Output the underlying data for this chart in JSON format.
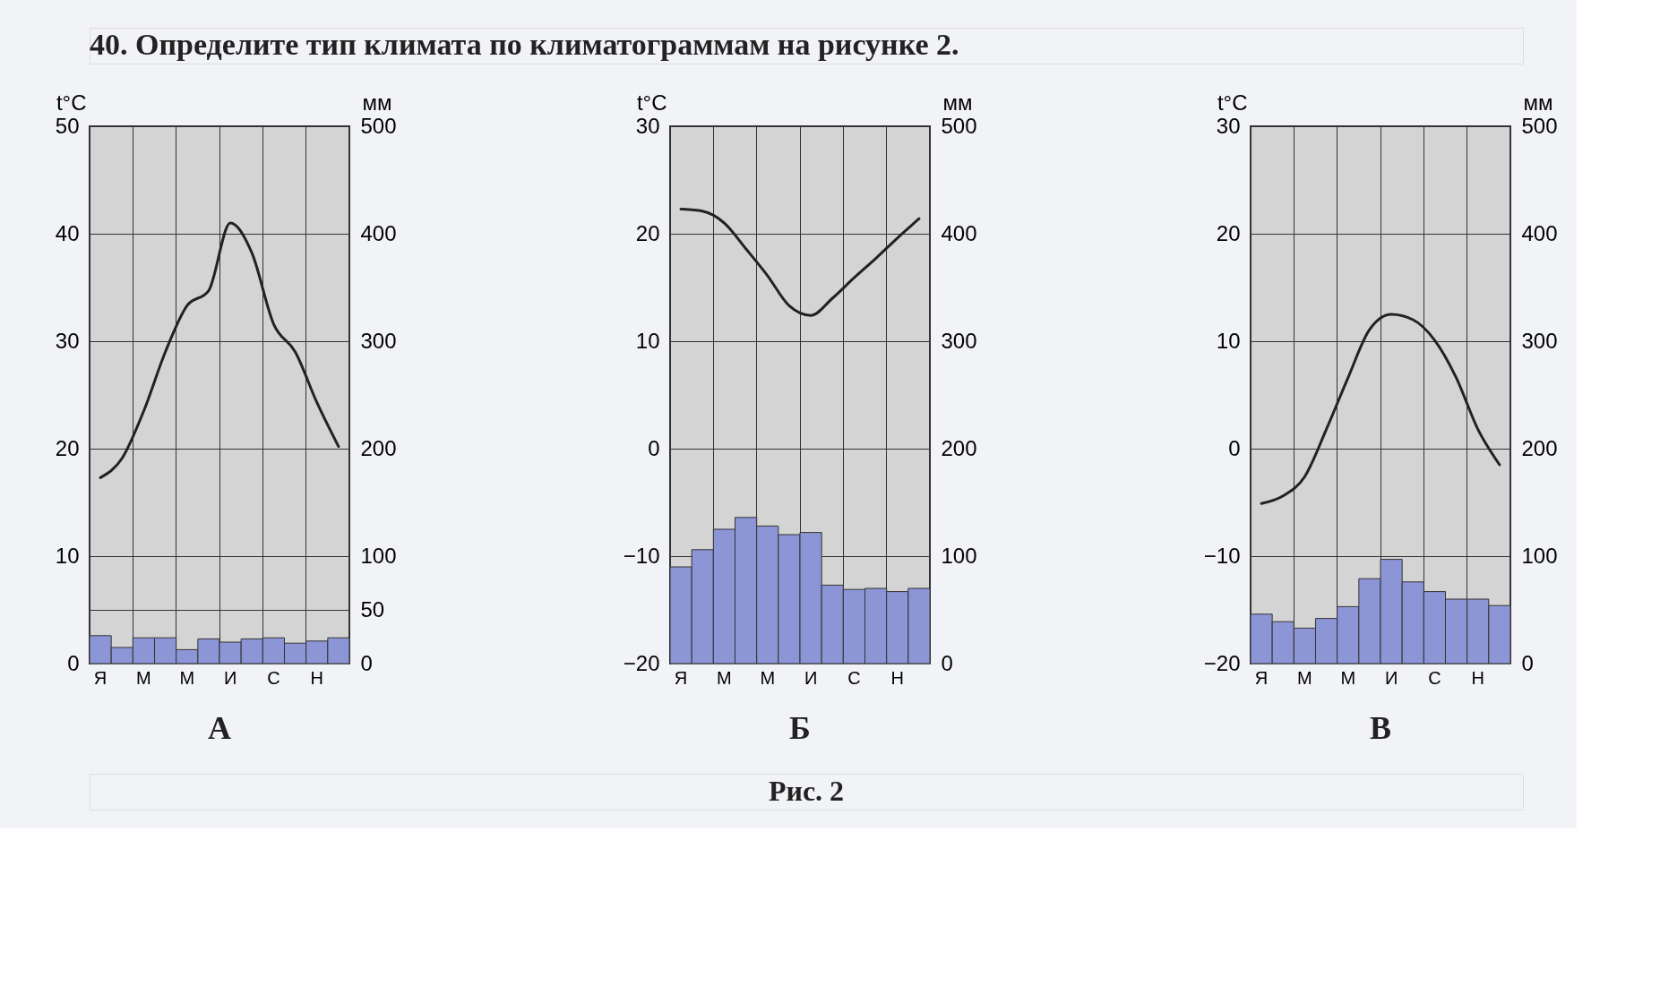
{
  "chart_data": [
    {
      "type": "bar",
      "title": "А",
      "annotations": [
        "40. Определите тип климата по климатограммам на рисунке 2."
      ],
      "categories": [
        "Я",
        null,
        "М",
        null,
        "М",
        null,
        "И",
        null,
        "С",
        null,
        "Н",
        null
      ],
      "ylabel": "t°C",
      "y2label": "мм",
      "ylim": [
        0,
        50
      ],
      "yticks": [
        0,
        10,
        20,
        30,
        40,
        50
      ],
      "y2lim": [
        0,
        500
      ],
      "y2ticks": [
        0,
        50,
        100,
        200,
        300,
        400,
        500
      ],
      "grid": true,
      "series": [
        {
          "axis": "y2",
          "color": "#8c95d6",
          "values": [
            26,
            15,
            24,
            24,
            13,
            23,
            20,
            23,
            24,
            19,
            21,
            24
          ]
        },
        {
          "type": "line",
          "color": "#222222",
          "values": [
            17.3,
            19.1,
            23.5,
            29,
            33.3,
            34.7,
            41,
            38.2,
            31.6,
            29,
            24.3,
            20.2
          ]
        }
      ]
    },
    {
      "type": "bar",
      "title": "Б",
      "annotations": [
        "Рис. 2"
      ],
      "categories": [
        "Я",
        null,
        "М",
        null,
        "М",
        null,
        "И",
        null,
        "С",
        null,
        "Н",
        null
      ],
      "ylabel": "t°C",
      "y2label": "мм",
      "ylim": [
        -20,
        30
      ],
      "yticks": [
        -20,
        -10,
        0,
        10,
        20,
        30
      ],
      "y2lim": [
        0,
        500
      ],
      "y2ticks": [
        0,
        100,
        200,
        300,
        400,
        500
      ],
      "grid": true,
      "series": [
        {
          "axis": "y2",
          "color": "#8c95d6",
          "values": [
            90,
            106,
            125,
            136,
            128,
            120,
            122,
            73,
            69,
            70,
            67,
            70
          ]
        },
        {
          "type": "line",
          "color": "#222222",
          "values": [
            22.3,
            22.1,
            21.0,
            18.6,
            16.1,
            13.3,
            12.4,
            14.0,
            15.9,
            17.7,
            19.6,
            21.4
          ]
        }
      ]
    },
    {
      "type": "bar",
      "title": "В",
      "categories": [
        "Я",
        null,
        "М",
        null,
        "М",
        null,
        "И",
        null,
        "С",
        null,
        "Н",
        null
      ],
      "ylabel": "t°C",
      "y2label": "мм",
      "ylim": [
        -20,
        30
      ],
      "yticks": [
        -20,
        -10,
        0,
        10,
        20,
        30
      ],
      "y2lim": [
        0,
        500
      ],
      "y2ticks": [
        0,
        100,
        200,
        300,
        400,
        500
      ],
      "grid": true,
      "series": [
        {
          "axis": "y2",
          "color": "#8c95d6",
          "values": [
            46,
            39,
            33,
            42,
            53,
            79,
            97,
            76,
            67,
            60,
            60,
            54
          ]
        },
        {
          "type": "line",
          "color": "#222222",
          "values": [
            -5.1,
            -4.4,
            -2.6,
            1.8,
            6.6,
            11.1,
            12.5,
            12.0,
            10.1,
            6.6,
            1.8,
            -1.5
          ]
        }
      ]
    }
  ]
}
